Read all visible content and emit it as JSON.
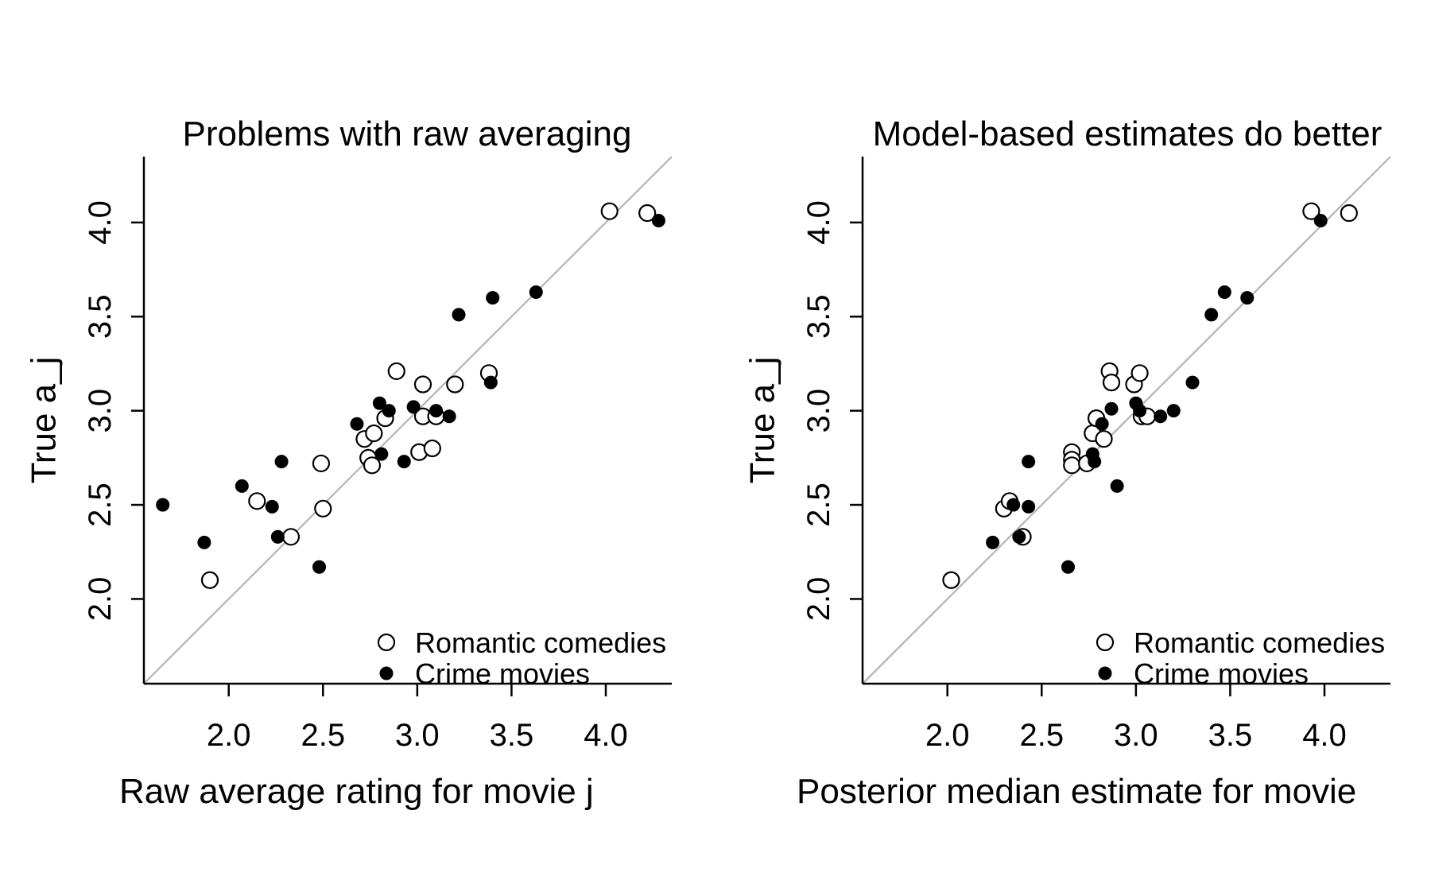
{
  "chart_data": [
    {
      "type": "scatter",
      "title": "Problems with raw averaging",
      "xlabel": "Raw average rating for movie j",
      "ylabel": "True a_j",
      "xlim": [
        1.55,
        4.35
      ],
      "ylim": [
        1.55,
        4.35
      ],
      "xticks": [
        "2.0",
        "2.5",
        "3.0",
        "3.5",
        "4.0"
      ],
      "yticks": [
        "2.0",
        "2.5",
        "3.0",
        "3.5",
        "4.0"
      ],
      "reference_line": "y = x",
      "legend_position": "bottom-right",
      "grid": false,
      "series": [
        {
          "name": "Romantic comedies",
          "marker": "open-circle",
          "points": [
            {
              "x": 1.9,
              "y": 2.1
            },
            {
              "x": 2.15,
              "y": 2.52
            },
            {
              "x": 2.33,
              "y": 2.33
            },
            {
              "x": 2.49,
              "y": 2.72
            },
            {
              "x": 2.5,
              "y": 2.48
            },
            {
              "x": 2.72,
              "y": 2.85
            },
            {
              "x": 2.74,
              "y": 2.75
            },
            {
              "x": 2.76,
              "y": 2.71
            },
            {
              "x": 2.77,
              "y": 2.88
            },
            {
              "x": 2.83,
              "y": 2.96
            },
            {
              "x": 2.89,
              "y": 3.21
            },
            {
              "x": 3.01,
              "y": 2.78
            },
            {
              "x": 3.03,
              "y": 3.14
            },
            {
              "x": 3.03,
              "y": 2.97
            },
            {
              "x": 3.08,
              "y": 2.8
            },
            {
              "x": 3.1,
              "y": 2.97
            },
            {
              "x": 3.2,
              "y": 3.14
            },
            {
              "x": 3.38,
              "y": 3.2
            },
            {
              "x": 4.02,
              "y": 4.06
            },
            {
              "x": 4.22,
              "y": 4.05
            }
          ]
        },
        {
          "name": "Crime movies",
          "marker": "filled-circle",
          "points": [
            {
              "x": 1.65,
              "y": 2.5
            },
            {
              "x": 1.87,
              "y": 2.3
            },
            {
              "x": 2.07,
              "y": 2.6
            },
            {
              "x": 2.23,
              "y": 2.49
            },
            {
              "x": 2.26,
              "y": 2.33
            },
            {
              "x": 2.28,
              "y": 2.73
            },
            {
              "x": 2.48,
              "y": 2.17
            },
            {
              "x": 2.68,
              "y": 2.93
            },
            {
              "x": 2.8,
              "y": 3.04
            },
            {
              "x": 2.81,
              "y": 2.77
            },
            {
              "x": 2.85,
              "y": 3.0
            },
            {
              "x": 2.93,
              "y": 2.73
            },
            {
              "x": 2.98,
              "y": 3.02
            },
            {
              "x": 3.1,
              "y": 3.0
            },
            {
              "x": 3.17,
              "y": 2.97
            },
            {
              "x": 3.22,
              "y": 3.51
            },
            {
              "x": 3.39,
              "y": 3.15
            },
            {
              "x": 3.4,
              "y": 3.6
            },
            {
              "x": 3.63,
              "y": 3.63
            },
            {
              "x": 4.28,
              "y": 4.01
            }
          ]
        }
      ]
    },
    {
      "type": "scatter",
      "title": "Model-based estimates do better",
      "xlabel": "Posterior median estimate for movie",
      "ylabel": "True a_j",
      "xlim": [
        1.55,
        4.35
      ],
      "ylim": [
        1.55,
        4.35
      ],
      "xticks": [
        "2.0",
        "2.5",
        "3.0",
        "3.5",
        "4.0"
      ],
      "yticks": [
        "2.0",
        "2.5",
        "3.0",
        "3.5",
        "4.0"
      ],
      "reference_line": "y = x",
      "legend_position": "bottom-right",
      "grid": false,
      "series": [
        {
          "name": "Romantic comedies",
          "marker": "open-circle",
          "points": [
            {
              "x": 2.02,
              "y": 2.1
            },
            {
              "x": 2.3,
              "y": 2.48
            },
            {
              "x": 2.33,
              "y": 2.52
            },
            {
              "x": 2.4,
              "y": 2.33
            },
            {
              "x": 2.66,
              "y": 2.78
            },
            {
              "x": 2.66,
              "y": 2.74
            },
            {
              "x": 2.66,
              "y": 2.71
            },
            {
              "x": 2.74,
              "y": 2.72
            },
            {
              "x": 2.77,
              "y": 2.88
            },
            {
              "x": 2.79,
              "y": 2.96
            },
            {
              "x": 2.83,
              "y": 2.85
            },
            {
              "x": 2.86,
              "y": 3.21
            },
            {
              "x": 2.87,
              "y": 3.15
            },
            {
              "x": 2.99,
              "y": 3.14
            },
            {
              "x": 3.02,
              "y": 3.2
            },
            {
              "x": 3.03,
              "y": 2.97
            },
            {
              "x": 3.06,
              "y": 2.97
            },
            {
              "x": 3.93,
              "y": 4.06
            },
            {
              "x": 4.13,
              "y": 4.05
            }
          ]
        },
        {
          "name": "Crime movies",
          "marker": "filled-circle",
          "points": [
            {
              "x": 2.24,
              "y": 2.3
            },
            {
              "x": 2.35,
              "y": 2.5
            },
            {
              "x": 2.38,
              "y": 2.33
            },
            {
              "x": 2.43,
              "y": 2.49
            },
            {
              "x": 2.43,
              "y": 2.73
            },
            {
              "x": 2.64,
              "y": 2.17
            },
            {
              "x": 2.77,
              "y": 2.77
            },
            {
              "x": 2.78,
              "y": 2.73
            },
            {
              "x": 2.82,
              "y": 2.93
            },
            {
              "x": 2.87,
              "y": 3.01
            },
            {
              "x": 2.9,
              "y": 2.6
            },
            {
              "x": 3.0,
              "y": 3.04
            },
            {
              "x": 3.02,
              "y": 3.0
            },
            {
              "x": 3.13,
              "y": 2.97
            },
            {
              "x": 3.2,
              "y": 3.0
            },
            {
              "x": 3.3,
              "y": 3.15
            },
            {
              "x": 3.4,
              "y": 3.51
            },
            {
              "x": 3.47,
              "y": 3.63
            },
            {
              "x": 3.59,
              "y": 3.6
            },
            {
              "x": 3.98,
              "y": 4.01
            }
          ]
        }
      ]
    }
  ]
}
